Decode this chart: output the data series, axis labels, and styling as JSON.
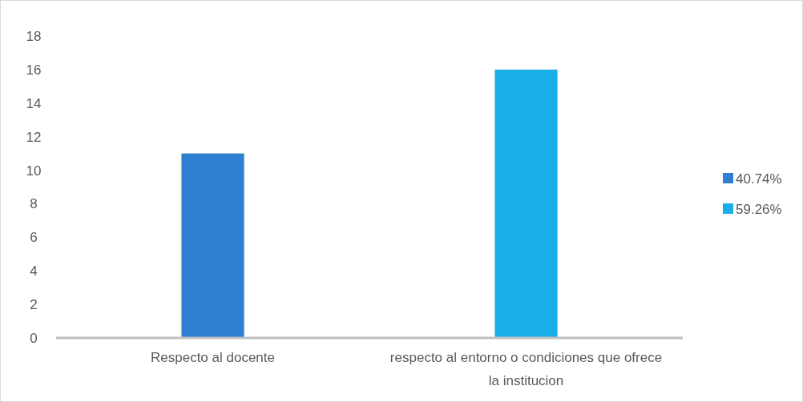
{
  "chart_data": {
    "type": "bar",
    "categories": [
      "Respecto al docente",
      "respecto al entorno o condiciones que ofrece la institucion"
    ],
    "series": [
      {
        "name": "40.74%",
        "color": "#2f80d0",
        "values": [
          11,
          null
        ]
      },
      {
        "name": "59.26%",
        "color": "#1aaee6",
        "values": [
          null,
          16
        ]
      }
    ],
    "ylim": [
      0,
      18
    ],
    "yticks": [
      0,
      2,
      4,
      6,
      8,
      10,
      12,
      14,
      16,
      18
    ],
    "legend": "right",
    "grid": false
  }
}
